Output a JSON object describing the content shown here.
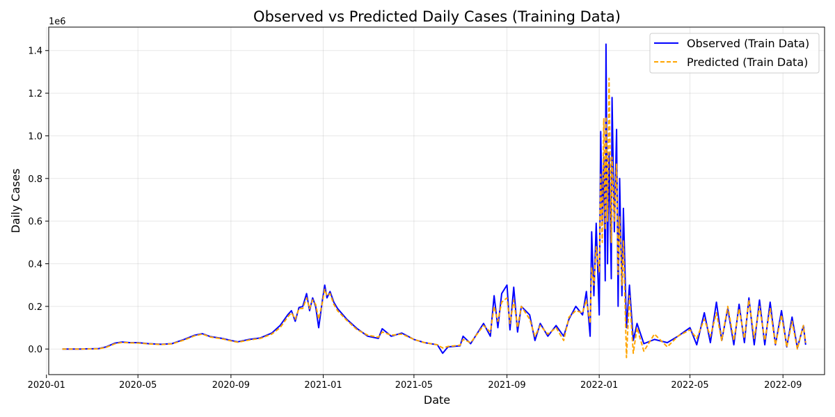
{
  "chart_data": {
    "type": "line",
    "title": "Observed vs Predicted Daily Cases (Training Data)",
    "xlabel": "Date",
    "ylabel": "Daily Cases",
    "y_scale_label": "1e6",
    "ylim": [
      -120000,
      1510000
    ],
    "xlim": [
      "2020-01-04",
      "2022-10-26"
    ],
    "grid": true,
    "legend_position": "top-right",
    "x_ticks": [
      "2020-01",
      "2020-05",
      "2020-09",
      "2021-01",
      "2021-05",
      "2021-09",
      "2022-01",
      "2022-05",
      "2022-09"
    ],
    "y_ticks": [
      0,
      200000,
      400000,
      600000,
      800000,
      1000000,
      1200000,
      1400000
    ],
    "y_tick_labels": [
      "0.0",
      "0.2",
      "0.4",
      "0.6",
      "0.8",
      "1.0",
      "1.2",
      "1.4"
    ],
    "series": [
      {
        "name": "Observed (Train Data)",
        "color": "#0000ff",
        "style": "solid",
        "points": [
          [
            "2020-01-22",
            0
          ],
          [
            "2020-02-15",
            0
          ],
          [
            "2020-03-10",
            2000
          ],
          [
            "2020-03-20",
            10000
          ],
          [
            "2020-04-01",
            28000
          ],
          [
            "2020-04-10",
            33000
          ],
          [
            "2020-04-20",
            30000
          ],
          [
            "2020-05-01",
            30000
          ],
          [
            "2020-05-15",
            25000
          ],
          [
            "2020-06-01",
            22000
          ],
          [
            "2020-06-15",
            25000
          ],
          [
            "2020-07-01",
            45000
          ],
          [
            "2020-07-15",
            65000
          ],
          [
            "2020-07-25",
            72000
          ],
          [
            "2020-08-05",
            58000
          ],
          [
            "2020-08-20",
            50000
          ],
          [
            "2020-09-01",
            40000
          ],
          [
            "2020-09-10",
            34000
          ],
          [
            "2020-09-25",
            45000
          ],
          [
            "2020-10-10",
            52000
          ],
          [
            "2020-10-25",
            75000
          ],
          [
            "2020-11-05",
            110000
          ],
          [
            "2020-11-15",
            160000
          ],
          [
            "2020-11-20",
            180000
          ],
          [
            "2020-11-25",
            130000
          ],
          [
            "2020-11-30",
            195000
          ],
          [
            "2020-12-05",
            200000
          ],
          [
            "2020-12-10",
            260000
          ],
          [
            "2020-12-14",
            180000
          ],
          [
            "2020-12-18",
            240000
          ],
          [
            "2020-12-22",
            200000
          ],
          [
            "2020-12-26",
            100000
          ],
          [
            "2020-12-31",
            230000
          ],
          [
            "2021-01-03",
            300000
          ],
          [
            "2021-01-06",
            240000
          ],
          [
            "2021-01-10",
            270000
          ],
          [
            "2021-01-15",
            220000
          ],
          [
            "2021-01-20",
            190000
          ],
          [
            "2021-02-01",
            140000
          ],
          [
            "2021-02-15",
            95000
          ],
          [
            "2021-03-01",
            60000
          ],
          [
            "2021-03-15",
            50000
          ],
          [
            "2021-03-20",
            95000
          ],
          [
            "2021-04-01",
            60000
          ],
          [
            "2021-04-15",
            75000
          ],
          [
            "2021-05-01",
            45000
          ],
          [
            "2021-05-15",
            30000
          ],
          [
            "2021-06-01",
            20000
          ],
          [
            "2021-06-08",
            -20000
          ],
          [
            "2021-06-15",
            10000
          ],
          [
            "2021-07-01",
            15000
          ],
          [
            "2021-07-05",
            60000
          ],
          [
            "2021-07-15",
            25000
          ],
          [
            "2021-08-01",
            120000
          ],
          [
            "2021-08-10",
            60000
          ],
          [
            "2021-08-15",
            250000
          ],
          [
            "2021-08-20",
            100000
          ],
          [
            "2021-08-25",
            260000
          ],
          [
            "2021-09-01",
            300000
          ],
          [
            "2021-09-05",
            90000
          ],
          [
            "2021-09-10",
            290000
          ],
          [
            "2021-09-15",
            80000
          ],
          [
            "2021-09-20",
            200000
          ],
          [
            "2021-10-01",
            160000
          ],
          [
            "2021-10-08",
            40000
          ],
          [
            "2021-10-15",
            120000
          ],
          [
            "2021-10-25",
            60000
          ],
          [
            "2021-11-05",
            110000
          ],
          [
            "2021-11-15",
            60000
          ],
          [
            "2021-11-22",
            140000
          ],
          [
            "2021-12-01",
            200000
          ],
          [
            "2021-12-10",
            160000
          ],
          [
            "2021-12-15",
            270000
          ],
          [
            "2021-12-20",
            60000
          ],
          [
            "2021-12-22",
            550000
          ],
          [
            "2021-12-25",
            250000
          ],
          [
            "2021-12-28",
            590000
          ],
          [
            "2022-01-01",
            160000
          ],
          [
            "2022-01-03",
            1020000
          ],
          [
            "2022-01-05",
            600000
          ],
          [
            "2022-01-07",
            900000
          ],
          [
            "2022-01-09",
            320000
          ],
          [
            "2022-01-10",
            1430000
          ],
          [
            "2022-01-12",
            400000
          ],
          [
            "2022-01-14",
            920000
          ],
          [
            "2022-01-17",
            330000
          ],
          [
            "2022-01-18",
            1180000
          ],
          [
            "2022-01-21",
            550000
          ],
          [
            "2022-01-24",
            1030000
          ],
          [
            "2022-01-26",
            200000
          ],
          [
            "2022-01-28",
            800000
          ],
          [
            "2022-01-31",
            250000
          ],
          [
            "2022-02-02",
            660000
          ],
          [
            "2022-02-06",
            100000
          ],
          [
            "2022-02-10",
            300000
          ],
          [
            "2022-02-15",
            40000
          ],
          [
            "2022-02-20",
            120000
          ],
          [
            "2022-03-01",
            25000
          ],
          [
            "2022-03-15",
            45000
          ],
          [
            "2022-04-01",
            30000
          ],
          [
            "2022-04-15",
            60000
          ],
          [
            "2022-05-01",
            100000
          ],
          [
            "2022-05-10",
            20000
          ],
          [
            "2022-05-20",
            170000
          ],
          [
            "2022-05-28",
            30000
          ],
          [
            "2022-06-05",
            220000
          ],
          [
            "2022-06-12",
            40000
          ],
          [
            "2022-06-20",
            190000
          ],
          [
            "2022-06-28",
            20000
          ],
          [
            "2022-07-05",
            210000
          ],
          [
            "2022-07-12",
            30000
          ],
          [
            "2022-07-18",
            240000
          ],
          [
            "2022-07-25",
            20000
          ],
          [
            "2022-08-01",
            230000
          ],
          [
            "2022-08-08",
            20000
          ],
          [
            "2022-08-15",
            220000
          ],
          [
            "2022-08-22",
            20000
          ],
          [
            "2022-08-30",
            180000
          ],
          [
            "2022-09-06",
            10000
          ],
          [
            "2022-09-13",
            150000
          ],
          [
            "2022-09-20",
            5000
          ],
          [
            "2022-09-28",
            110000
          ],
          [
            "2022-10-01",
            20000
          ]
        ]
      },
      {
        "name": "Predicted (Train Data)",
        "color": "#ffa500",
        "style": "dashed",
        "points": [
          [
            "2020-01-22",
            0
          ],
          [
            "2020-02-15",
            0
          ],
          [
            "2020-03-10",
            1000
          ],
          [
            "2020-03-20",
            8000
          ],
          [
            "2020-04-01",
            25000
          ],
          [
            "2020-04-10",
            31000
          ],
          [
            "2020-04-20",
            29000
          ],
          [
            "2020-05-01",
            28000
          ],
          [
            "2020-05-15",
            24000
          ],
          [
            "2020-06-01",
            21000
          ],
          [
            "2020-06-15",
            24000
          ],
          [
            "2020-07-01",
            42000
          ],
          [
            "2020-07-15",
            62000
          ],
          [
            "2020-07-25",
            70000
          ],
          [
            "2020-08-05",
            56000
          ],
          [
            "2020-08-20",
            48000
          ],
          [
            "2020-09-01",
            38000
          ],
          [
            "2020-09-10",
            32000
          ],
          [
            "2020-09-25",
            42000
          ],
          [
            "2020-10-10",
            50000
          ],
          [
            "2020-10-25",
            70000
          ],
          [
            "2020-11-05",
            100000
          ],
          [
            "2020-11-15",
            150000
          ],
          [
            "2020-11-20",
            170000
          ],
          [
            "2020-11-25",
            140000
          ],
          [
            "2020-11-30",
            190000
          ],
          [
            "2020-12-05",
            190000
          ],
          [
            "2020-12-10",
            240000
          ],
          [
            "2020-12-14",
            190000
          ],
          [
            "2020-12-18",
            230000
          ],
          [
            "2020-12-22",
            210000
          ],
          [
            "2020-12-26",
            140000
          ],
          [
            "2020-12-31",
            220000
          ],
          [
            "2021-01-03",
            280000
          ],
          [
            "2021-01-06",
            250000
          ],
          [
            "2021-01-10",
            260000
          ],
          [
            "2021-01-15",
            210000
          ],
          [
            "2021-01-20",
            180000
          ],
          [
            "2021-02-01",
            135000
          ],
          [
            "2021-02-15",
            90000
          ],
          [
            "2021-03-01",
            65000
          ],
          [
            "2021-03-15",
            55000
          ],
          [
            "2021-03-20",
            80000
          ],
          [
            "2021-04-01",
            65000
          ],
          [
            "2021-04-15",
            70000
          ],
          [
            "2021-05-01",
            45000
          ],
          [
            "2021-05-15",
            30000
          ],
          [
            "2021-06-01",
            20000
          ],
          [
            "2021-06-08",
            5000
          ],
          [
            "2021-06-15",
            12000
          ],
          [
            "2021-07-01",
            18000
          ],
          [
            "2021-07-05",
            45000
          ],
          [
            "2021-07-15",
            30000
          ],
          [
            "2021-08-01",
            110000
          ],
          [
            "2021-08-10",
            80000
          ],
          [
            "2021-08-15",
            200000
          ],
          [
            "2021-08-20",
            130000
          ],
          [
            "2021-08-25",
            220000
          ],
          [
            "2021-09-01",
            240000
          ],
          [
            "2021-09-05",
            120000
          ],
          [
            "2021-09-10",
            230000
          ],
          [
            "2021-09-15",
            100000
          ],
          [
            "2021-09-20",
            200000
          ],
          [
            "2021-10-01",
            140000
          ],
          [
            "2021-10-08",
            60000
          ],
          [
            "2021-10-15",
            110000
          ],
          [
            "2021-10-25",
            70000
          ],
          [
            "2021-11-05",
            100000
          ],
          [
            "2021-11-15",
            40000
          ],
          [
            "2021-11-22",
            150000
          ],
          [
            "2021-12-01",
            180000
          ],
          [
            "2021-12-10",
            170000
          ],
          [
            "2021-12-15",
            230000
          ],
          [
            "2021-12-20",
            120000
          ],
          [
            "2021-12-22",
            380000
          ],
          [
            "2021-12-25",
            300000
          ],
          [
            "2021-12-28",
            480000
          ],
          [
            "2022-01-01",
            360000
          ],
          [
            "2022-01-03",
            820000
          ],
          [
            "2022-01-05",
            500000
          ],
          [
            "2022-01-07",
            1080000
          ],
          [
            "2022-01-09",
            560000
          ],
          [
            "2022-01-10",
            1090000
          ],
          [
            "2022-01-12",
            600000
          ],
          [
            "2022-01-14",
            1270000
          ],
          [
            "2022-01-17",
            500000
          ],
          [
            "2022-01-18",
            900000
          ],
          [
            "2022-01-21",
            600000
          ],
          [
            "2022-01-24",
            870000
          ],
          [
            "2022-01-26",
            350000
          ],
          [
            "2022-01-28",
            620000
          ],
          [
            "2022-01-31",
            300000
          ],
          [
            "2022-02-02",
            510000
          ],
          [
            "2022-02-06",
            -40000
          ],
          [
            "2022-02-10",
            250000
          ],
          [
            "2022-02-15",
            -20000
          ],
          [
            "2022-02-20",
            100000
          ],
          [
            "2022-03-01",
            -10000
          ],
          [
            "2022-03-15",
            70000
          ],
          [
            "2022-04-01",
            10000
          ],
          [
            "2022-04-15",
            60000
          ],
          [
            "2022-05-01",
            90000
          ],
          [
            "2022-05-10",
            50000
          ],
          [
            "2022-05-20",
            140000
          ],
          [
            "2022-05-28",
            60000
          ],
          [
            "2022-06-05",
            170000
          ],
          [
            "2022-06-12",
            40000
          ],
          [
            "2022-06-20",
            200000
          ],
          [
            "2022-06-28",
            40000
          ],
          [
            "2022-07-05",
            190000
          ],
          [
            "2022-07-12",
            50000
          ],
          [
            "2022-07-18",
            230000
          ],
          [
            "2022-07-25",
            50000
          ],
          [
            "2022-08-01",
            200000
          ],
          [
            "2022-08-08",
            40000
          ],
          [
            "2022-08-15",
            190000
          ],
          [
            "2022-08-22",
            20000
          ],
          [
            "2022-08-30",
            160000
          ],
          [
            "2022-09-06",
            10000
          ],
          [
            "2022-09-13",
            130000
          ],
          [
            "2022-09-20",
            0
          ],
          [
            "2022-09-28",
            110000
          ],
          [
            "2022-10-01",
            30000
          ]
        ]
      }
    ]
  }
}
